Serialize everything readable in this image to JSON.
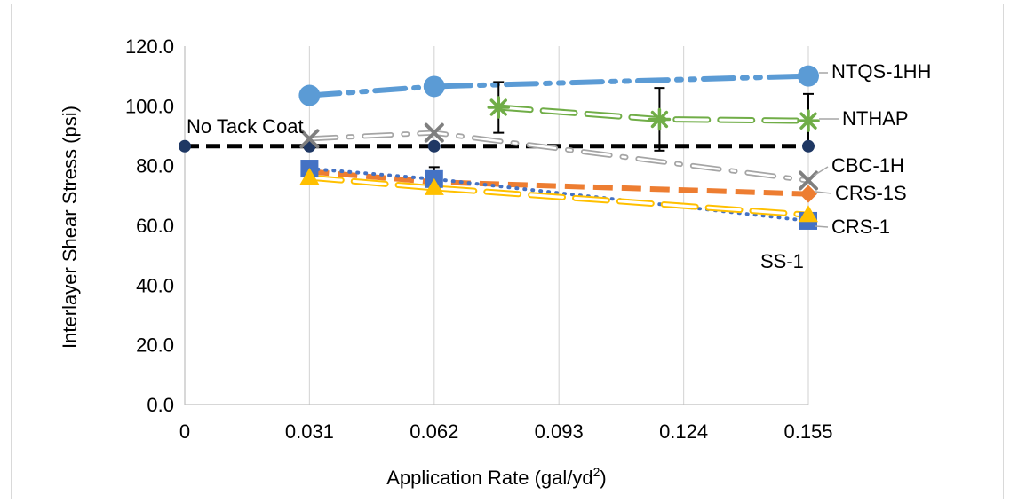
{
  "chart_data": {
    "type": "line",
    "xlabel": "Application Rate (gal/yd",
    "xlabel_sup": "2",
    "xlabel_end": ")",
    "ylabel": "Interlayer Shear Stress (psi)",
    "xlim": [
      0,
      0.155
    ],
    "ylim": [
      0,
      120
    ],
    "x_ticks": [
      "0",
      "0.031",
      "0.062",
      "0.093",
      "0.124",
      "0.155"
    ],
    "y_ticks": [
      "0.0",
      "20.0",
      "40.0",
      "60.0",
      "80.0",
      "100.0",
      "120.0"
    ],
    "grid": "vertical",
    "series": [
      {
        "name": "No Tack Coat",
        "color": "#000000",
        "marker": "circle-navy",
        "style": "dash-bold",
        "x": [
          0,
          0.031,
          0.062,
          0.155
        ],
        "y": [
          86.5,
          86.5,
          86.5,
          86.5
        ]
      },
      {
        "name": "NTQS-1HH",
        "color": "#5b9bd5",
        "marker": "circle",
        "style": "dash-dot",
        "x": [
          0.031,
          0.062,
          0.155
        ],
        "y": [
          103.5,
          106.5,
          110
        ]
      },
      {
        "name": "NTHAP",
        "color": "#70ad47",
        "marker": "star",
        "style": "dash-hollow",
        "x": [
          0.078,
          0.118,
          0.155
        ],
        "y": [
          99.5,
          95.5,
          95
        ],
        "errors": [
          8.5,
          10.5,
          9
        ]
      },
      {
        "name": "CBC-1H",
        "color": "#a5a5a5",
        "marker": "x",
        "style": "dash-dot-hollow",
        "x": [
          0.031,
          0.062,
          0.155
        ],
        "y": [
          89,
          91,
          75
        ]
      },
      {
        "name": "CRS-1S",
        "color": "#ed7d31",
        "marker": "diamond",
        "style": "dash",
        "x": [
          0.031,
          0.062,
          0.155
        ],
        "y": [
          78,
          74.5,
          70.5
        ]
      },
      {
        "name": "CRS-1",
        "color": "#4472c4",
        "marker": "square",
        "style": "dot",
        "x": [
          0.031,
          0.062,
          0.155
        ],
        "y": [
          79,
          75.5,
          61.5
        ],
        "errors": [
          0,
          4,
          0
        ]
      },
      {
        "name": "SS-1",
        "color": "#ffc000",
        "marker": "triangle",
        "style": "dash-hollow",
        "x": [
          0.031,
          0.062,
          0.155
        ],
        "y": [
          76,
          72.5,
          63.5
        ]
      }
    ]
  }
}
